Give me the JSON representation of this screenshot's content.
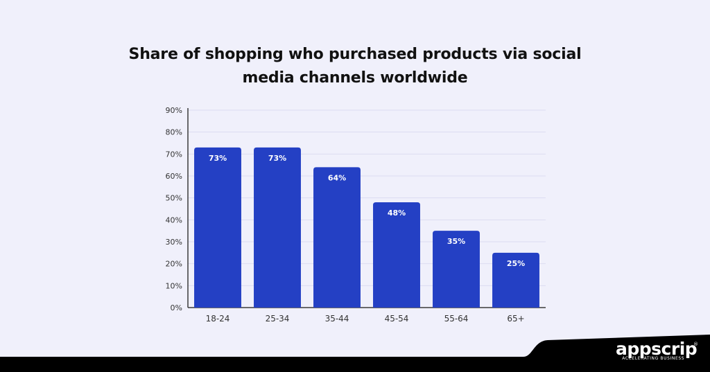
{
  "brand": {
    "wordmark": "appscrip",
    "tagline": "ACCELERATING BUSINESS",
    "registered": "®"
  },
  "colors": {
    "background": "#f0f0fb",
    "bar": "#2440c4",
    "axis": "#3a3a3a",
    "grid": "#dcdcf0",
    "footer": "#000000"
  },
  "chart_data": {
    "type": "bar",
    "title": "Share of shopping who purchased products via social media channels worldwide",
    "title_lines": [
      "Share of shopping who purchased products via social",
      "media channels worldwide"
    ],
    "categories": [
      "18-24",
      "25-34",
      "35-44",
      "45-54",
      "55-64",
      "65+"
    ],
    "values": [
      73,
      73,
      64,
      48,
      35,
      25
    ],
    "data_labels": [
      "73%",
      "73%",
      "64%",
      "48%",
      "35%",
      "25%"
    ],
    "ytick_labels": [
      "0%",
      "10%",
      "20%",
      "30%",
      "40%",
      "50%",
      "60%",
      "70%",
      "80%",
      "90%"
    ],
    "ylim": [
      0,
      90
    ],
    "xlabel": "",
    "ylabel": "",
    "grid": true,
    "legend": "none"
  }
}
